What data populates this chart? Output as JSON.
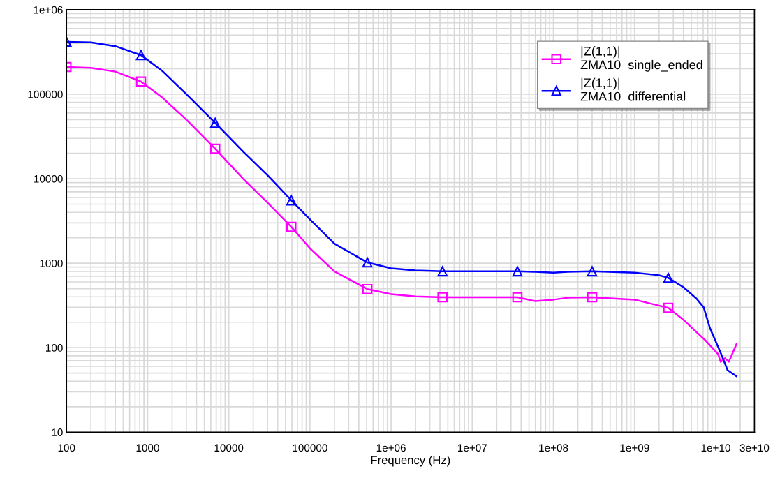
{
  "chart_data": {
    "type": "line",
    "xlabel": "Frequency (Hz)",
    "log": "xy",
    "grid": true,
    "legend": "top right",
    "xlim": [
      100,
      30000000000
    ],
    "ylim": [
      10,
      1000000
    ],
    "xticks": [
      100,
      1000,
      10000,
      100000,
      {
        "value": 1000000,
        "label": "1e+06"
      },
      {
        "value": 10000000,
        "label": "1e+07"
      },
      {
        "value": 100000000,
        "label": "1e+08"
      },
      {
        "value": 1000000000,
        "label": "1e+09"
      },
      {
        "value": 10000000000,
        "label": "1e+10"
      },
      {
        "value": 30000000000,
        "label": "3e+10"
      }
    ],
    "yticks": [
      10,
      100,
      1000,
      10000,
      100000,
      {
        "value": 1000000,
        "label": "1e+06"
      }
    ],
    "series": [
      {
        "name": "|Z(1,1)|\nZMA10  single_ended",
        "color": "#ff00ff",
        "marker": "none",
        "x": [
          100,
          200,
          400,
          830,
          1500,
          3000,
          6800,
          15000,
          30000,
          59000,
          100000,
          200000,
          510000,
          1000000,
          2000000,
          4300000,
          36000000,
          60000000,
          100000000,
          150000000,
          300000000,
          1000000000,
          2600000000,
          3900000000,
          7400000000,
          10700000000,
          11500000000,
          13000000000,
          14500000000,
          18000000000
        ],
        "values": [
          210000,
          205000,
          185000,
          141000,
          92000,
          50000,
          22600,
          10000,
          5200,
          2690,
          1500,
          800,
          494,
          430,
          405,
          394,
          394,
          355,
          370,
          390,
          394,
          370,
          296,
          218,
          123,
          84,
          68,
          75,
          68,
          110
        ]
      },
      {
        "type": "scatter",
        "color": "#ff00ff",
        "marker": "square",
        "x": [
          100,
          830,
          6800,
          59000,
          510000,
          4300000,
          36000000,
          300000000,
          2600000000
        ],
        "values": [
          210000,
          141000,
          22600,
          2690,
          494,
          394,
          394,
          394,
          296
        ]
      },
      {
        "name": "|Z(1,1)|\nZMA10  differential",
        "color": "#0000ff",
        "marker": "none",
        "x": [
          100,
          200,
          400,
          830,
          1500,
          3000,
          6800,
          15000,
          30000,
          59000,
          100000,
          200000,
          510000,
          1000000,
          2000000,
          4300000,
          36000000,
          60000000,
          100000000,
          150000000,
          300000000,
          1000000000,
          2000000000,
          2600000000,
          4000000000,
          5800000000,
          7100000000,
          8500000000,
          11500000000,
          14000000000,
          18000000000
        ],
        "values": [
          417000,
          410000,
          370000,
          290000,
          190000,
          100000,
          45800,
          21000,
          11000,
          5540,
          3300,
          1700,
          1020,
          870,
          820,
          800,
          800,
          790,
          770,
          790,
          800,
          770,
          720,
          670,
          520,
          380,
          300,
          170,
          87,
          54,
          46
        ]
      },
      {
        "type": "scatter",
        "color": "#0000ff",
        "marker": "triangle",
        "x": [
          100,
          830,
          6800,
          59000,
          510000,
          4300000,
          36000000,
          300000000,
          2600000000
        ],
        "values": [
          417000,
          290000,
          45800,
          5540,
          1020,
          800,
          800,
          800,
          670
        ]
      }
    ]
  }
}
